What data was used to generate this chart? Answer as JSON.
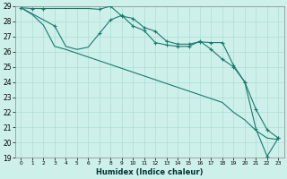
{
  "xlabel": "Humidex (Indice chaleur)",
  "bg_color": "#cdf0ea",
  "grid_color": "#b0ddd5",
  "line_color": "#1a7a6e",
  "xlim": [
    -0.5,
    23.5
  ],
  "ylim": [
    19,
    29
  ],
  "xticks": [
    0,
    1,
    2,
    3,
    4,
    5,
    6,
    7,
    8,
    9,
    10,
    11,
    12,
    13,
    14,
    15,
    16,
    17,
    18,
    19,
    20,
    21,
    22,
    23
  ],
  "yticks": [
    19,
    20,
    21,
    22,
    23,
    24,
    25,
    26,
    27,
    28,
    29
  ],
  "line1_x": [
    0,
    1,
    2,
    3,
    4,
    5,
    6,
    7,
    8,
    9,
    10,
    11,
    12,
    13,
    14,
    15,
    16,
    17,
    18,
    19,
    20,
    21,
    22,
    23
  ],
  "line1_y": [
    28.9,
    28.85,
    28.85,
    28.85,
    28.85,
    28.85,
    28.85,
    28.8,
    29.0,
    28.35,
    28.2,
    27.6,
    27.35,
    26.7,
    26.5,
    26.5,
    26.65,
    26.6,
    26.6,
    25.1,
    24.0,
    22.2,
    20.85,
    20.3
  ],
  "line2_x": [
    0,
    3,
    4,
    5,
    6,
    7,
    8,
    9,
    10,
    11,
    12,
    13,
    14,
    15,
    16,
    17,
    18,
    19,
    20,
    21,
    22,
    23
  ],
  "line2_y": [
    28.9,
    27.7,
    26.35,
    26.15,
    26.3,
    27.2,
    28.1,
    28.4,
    27.7,
    27.4,
    26.6,
    26.45,
    26.35,
    26.35,
    26.7,
    26.15,
    25.5,
    25.0,
    24.0,
    20.9,
    19.1,
    20.3
  ],
  "line3_x": [
    0,
    1,
    2,
    3,
    4,
    5,
    6,
    7,
    8,
    9,
    10,
    11,
    12,
    13,
    14,
    15,
    16,
    17,
    18,
    19,
    20,
    21,
    22,
    23
  ],
  "line3_y": [
    28.9,
    28.45,
    27.75,
    26.35,
    26.15,
    25.9,
    25.65,
    25.4,
    25.15,
    24.9,
    24.65,
    24.4,
    24.15,
    23.9,
    23.65,
    23.4,
    23.15,
    22.9,
    22.65,
    22.0,
    21.5,
    20.8,
    20.3,
    20.2
  ],
  "markers_line1_x": [
    0,
    1,
    2,
    7,
    8,
    9,
    10,
    11,
    12,
    13,
    14,
    15,
    16,
    17,
    18,
    19,
    20,
    21,
    22,
    23
  ],
  "markers_line1_y": [
    28.9,
    28.85,
    28.85,
    28.8,
    29.0,
    28.35,
    28.2,
    27.6,
    27.35,
    26.7,
    26.5,
    26.5,
    26.65,
    26.6,
    26.6,
    25.1,
    24.0,
    22.2,
    20.85,
    20.3
  ],
  "markers_line2_x": [
    3,
    7,
    8,
    9,
    10,
    11,
    12,
    13,
    14,
    15,
    16,
    17,
    18,
    19,
    20,
    21,
    22,
    23
  ],
  "markers_line2_y": [
    27.7,
    27.2,
    28.1,
    28.4,
    27.7,
    27.4,
    26.6,
    26.45,
    26.35,
    26.35,
    26.7,
    26.15,
    25.5,
    25.0,
    24.0,
    20.9,
    19.1,
    20.3
  ]
}
